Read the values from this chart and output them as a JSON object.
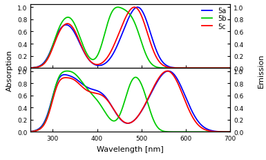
{
  "colors": {
    "5a": "#0000FF",
    "5b": "#00CC00",
    "5c": "#FF0000"
  },
  "legend_labels": [
    "5a",
    "5b",
    "5c"
  ],
  "xlabel": "Wavelength [nm]",
  "ylabel_left": "Absorption",
  "ylabel_right": "Emission",
  "xlim": [
    250,
    700
  ],
  "ylim": [
    -0.02,
    1.05
  ],
  "x_ticks": [
    300,
    400,
    500,
    600,
    700
  ],
  "y_ticks": [
    0.0,
    0.2,
    0.4,
    0.6,
    0.8,
    1.0
  ],
  "line_width": 1.3
}
